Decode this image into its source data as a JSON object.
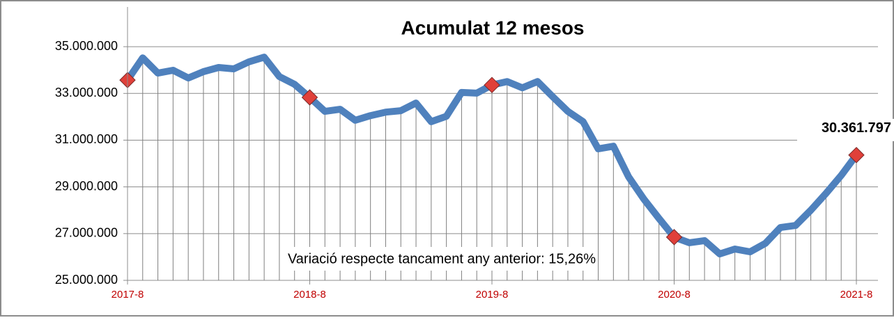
{
  "chart_data": {
    "type": "line",
    "title": "Acumulat 12 mesos",
    "annotation": "Variació respecte tancament any anterior: 15,26%",
    "categories": [
      "2017-8",
      null,
      null,
      null,
      null,
      null,
      null,
      null,
      null,
      null,
      null,
      null,
      "2018-8",
      null,
      null,
      null,
      null,
      null,
      null,
      null,
      null,
      null,
      null,
      null,
      "2019-8",
      null,
      null,
      null,
      null,
      null,
      null,
      null,
      null,
      null,
      null,
      null,
      "2020-8",
      null,
      null,
      null,
      null,
      null,
      null,
      null,
      null,
      null,
      null,
      null,
      "2021-8"
    ],
    "series": [
      {
        "name": "Acumulat 12 mesos",
        "color": "#4f81bd",
        "marker_color": "#e0403a",
        "values": [
          33570000,
          34520000,
          33870000,
          33990000,
          33660000,
          33930000,
          34110000,
          34050000,
          34350000,
          34550000,
          33720000,
          33390000,
          32830000,
          32230000,
          32320000,
          31850000,
          32050000,
          32200000,
          32260000,
          32590000,
          31790000,
          32020000,
          33040000,
          33010000,
          33360000,
          33510000,
          33240000,
          33510000,
          32860000,
          32230000,
          31790000,
          30630000,
          30740000,
          29430000,
          28480000,
          27650000,
          26850000,
          26610000,
          26700000,
          26130000,
          26340000,
          26220000,
          26580000,
          27260000,
          27350000,
          28000000,
          28720000,
          29490000,
          30361797
        ],
        "value_labels": [
          null,
          null,
          null,
          null,
          null,
          null,
          null,
          null,
          null,
          null,
          null,
          null,
          null,
          null,
          null,
          null,
          null,
          null,
          null,
          null,
          null,
          null,
          null,
          null,
          null,
          null,
          null,
          null,
          null,
          null,
          null,
          null,
          null,
          null,
          null,
          null,
          null,
          null,
          null,
          null,
          null,
          null,
          null,
          null,
          null,
          null,
          null,
          null,
          "30.361.797"
        ]
      }
    ],
    "ylim": [
      25000000,
      36700000
    ],
    "yticks": [
      {
        "value": 25000000,
        "label": "25.000.000"
      },
      {
        "value": 27000000,
        "label": "27.000.000"
      },
      {
        "value": 29000000,
        "label": "29.000.000"
      },
      {
        "value": 31000000,
        "label": "31.000.000"
      },
      {
        "value": 33000000,
        "label": "33.000.000"
      },
      {
        "value": 35000000,
        "label": "35.000.000"
      }
    ],
    "grid": true,
    "drop_lines": true
  }
}
